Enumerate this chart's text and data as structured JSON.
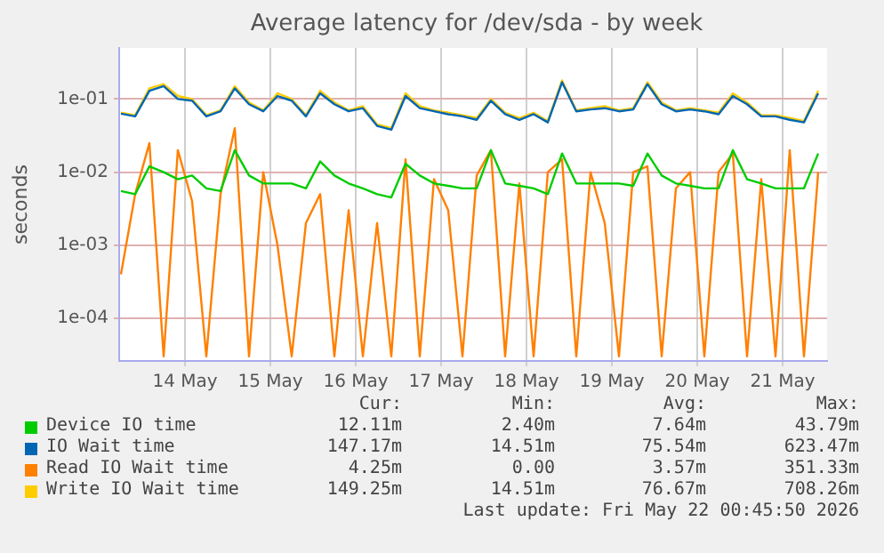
{
  "chart_data": {
    "type": "line",
    "title": "Average latency for /dev/sda - by week",
    "ylabel": "seconds",
    "x": [
      "2026-05-13T18:00",
      "2026-05-13T22:00",
      "2026-05-14T02:00",
      "2026-05-14T06:00",
      "2026-05-14T10:00",
      "2026-05-14T14:00",
      "2026-05-14T18:00",
      "2026-05-14T22:00",
      "2026-05-15T02:00",
      "2026-05-15T06:00",
      "2026-05-15T10:00",
      "2026-05-15T14:00",
      "2026-05-15T18:00",
      "2026-05-15T22:00",
      "2026-05-16T02:00",
      "2026-05-16T06:00",
      "2026-05-16T10:00",
      "2026-05-16T14:00",
      "2026-05-16T18:00",
      "2026-05-16T22:00",
      "2026-05-17T02:00",
      "2026-05-17T06:00",
      "2026-05-17T10:00",
      "2026-05-17T14:00",
      "2026-05-17T18:00",
      "2026-05-17T22:00",
      "2026-05-18T02:00",
      "2026-05-18T06:00",
      "2026-05-18T10:00",
      "2026-05-18T14:00",
      "2026-05-18T18:00",
      "2026-05-18T22:00",
      "2026-05-19T02:00",
      "2026-05-19T06:00",
      "2026-05-19T10:00",
      "2026-05-19T14:00",
      "2026-05-19T18:00",
      "2026-05-19T22:00",
      "2026-05-20T02:00",
      "2026-05-20T06:00",
      "2026-05-20T10:00",
      "2026-05-20T14:00",
      "2026-05-20T18:00",
      "2026-05-20T22:00",
      "2026-05-21T02:00",
      "2026-05-21T06:00",
      "2026-05-21T10:00",
      "2026-05-21T14:00",
      "2026-05-21T18:00",
      "2026-05-21T22:00"
    ],
    "series": [
      {
        "name": "Device IO time",
        "color": "#00cc00",
        "values": [
          0.0055,
          0.005,
          0.012,
          0.01,
          0.008,
          0.009,
          0.006,
          0.0055,
          0.02,
          0.009,
          0.007,
          0.007,
          0.007,
          0.006,
          0.014,
          0.009,
          0.007,
          0.006,
          0.005,
          0.0045,
          0.013,
          0.009,
          0.007,
          0.0065,
          0.006,
          0.006,
          0.02,
          0.007,
          0.0065,
          0.006,
          0.005,
          0.018,
          0.007,
          0.007,
          0.007,
          0.007,
          0.0065,
          0.018,
          0.009,
          0.007,
          0.0065,
          0.006,
          0.006,
          0.02,
          0.008,
          0.007,
          0.006,
          0.006,
          0.006,
          0.018
        ]
      },
      {
        "name": "IO Wait time",
        "color": "#0066b3",
        "values": [
          0.063,
          0.058,
          0.13,
          0.15,
          0.1,
          0.095,
          0.058,
          0.068,
          0.14,
          0.085,
          0.068,
          0.11,
          0.095,
          0.058,
          0.12,
          0.085,
          0.068,
          0.075,
          0.043,
          0.038,
          0.11,
          0.075,
          0.068,
          0.062,
          0.058,
          0.052,
          0.095,
          0.062,
          0.052,
          0.062,
          0.048,
          0.17,
          0.068,
          0.072,
          0.075,
          0.068,
          0.072,
          0.16,
          0.085,
          0.068,
          0.072,
          0.068,
          0.062,
          0.11,
          0.085,
          0.058,
          0.058,
          0.052,
          0.048,
          0.12
        ]
      },
      {
        "name": "Read IO Wait time",
        "color": "#ff8000",
        "values": [
          0.0004,
          0.005,
          0.025,
          3e-05,
          0.02,
          0.004,
          3e-05,
          0.005,
          0.04,
          3e-05,
          0.01,
          0.001,
          3e-05,
          0.002,
          0.005,
          3e-05,
          0.003,
          3e-05,
          0.002,
          3e-05,
          0.015,
          3e-05,
          0.008,
          0.003,
          3e-05,
          0.009,
          0.02,
          3e-05,
          0.007,
          3e-05,
          0.01,
          0.015,
          3e-05,
          0.01,
          0.002,
          3e-05,
          0.01,
          0.012,
          3e-05,
          0.006,
          0.01,
          3e-05,
          0.01,
          0.018,
          3e-05,
          0.008,
          3e-05,
          0.02,
          3e-05,
          0.01
        ]
      },
      {
        "name": "Write IO Wait time",
        "color": "#ffcc00",
        "values": [
          0.065,
          0.06,
          0.14,
          0.16,
          0.11,
          0.1,
          0.06,
          0.07,
          0.15,
          0.09,
          0.07,
          0.12,
          0.1,
          0.06,
          0.13,
          0.09,
          0.07,
          0.08,
          0.045,
          0.04,
          0.12,
          0.08,
          0.07,
          0.065,
          0.06,
          0.055,
          0.1,
          0.065,
          0.055,
          0.065,
          0.05,
          0.18,
          0.07,
          0.075,
          0.08,
          0.07,
          0.075,
          0.17,
          0.09,
          0.07,
          0.075,
          0.07,
          0.065,
          0.12,
          0.09,
          0.06,
          0.06,
          0.055,
          0.05,
          0.13
        ]
      }
    ],
    "xlim": [
      "2026-05-13T17:30",
      "2026-05-22T00:30"
    ],
    "xticks": [
      {
        "value": "2026-05-14T12:00",
        "label": "14 May"
      },
      {
        "value": "2026-05-15T12:00",
        "label": "15 May"
      },
      {
        "value": "2026-05-16T12:00",
        "label": "16 May"
      },
      {
        "value": "2026-05-17T12:00",
        "label": "17 May"
      },
      {
        "value": "2026-05-18T12:00",
        "label": "18 May"
      },
      {
        "value": "2026-05-19T12:00",
        "label": "19 May"
      },
      {
        "value": "2026-05-20T12:00",
        "label": "20 May"
      },
      {
        "value": "2026-05-21T12:00",
        "label": "21 May"
      }
    ],
    "ylim": [
      2.6e-05,
      0.5
    ],
    "yticks": [
      {
        "value": 0.0001,
        "label": "1e-04"
      },
      {
        "value": 0.001,
        "label": "1e-03"
      },
      {
        "value": 0.01,
        "label": "1e-02"
      },
      {
        "value": 0.1,
        "label": "1e-01"
      }
    ],
    "log": "y",
    "grid": true,
    "legend": "bottom",
    "marker": "none",
    "line_style": "solid",
    "annotations": [
      "Cur:",
      "Min:",
      "Avg:",
      "Max:",
      "12.11m",
      "2.40m",
      "7.64m",
      "43.79m",
      "147.17m",
      "14.51m",
      "75.54m",
      "623.47m",
      "4.25m",
      "0.00",
      "3.57m",
      "351.33m",
      "149.25m",
      "14.51m",
      "76.67m",
      "708.26m",
      "Last update: Fri May 22 00:45:50 2026"
    ]
  }
}
